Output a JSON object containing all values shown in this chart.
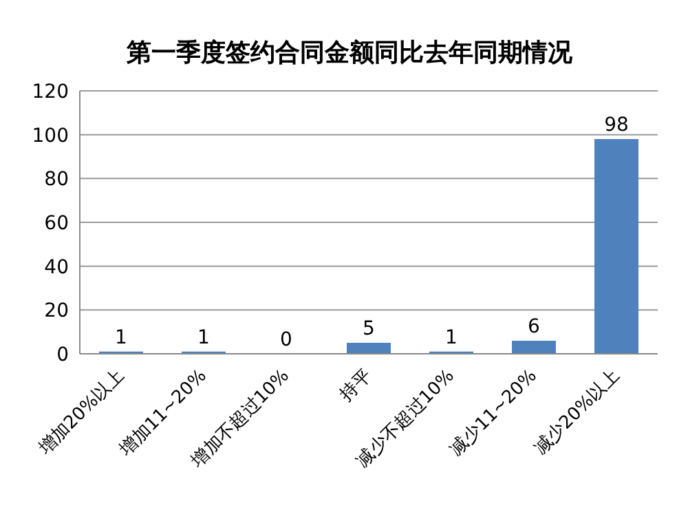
{
  "chart_data": {
    "type": "bar",
    "title": "第一季度签约合同金额同比去年同期情况",
    "categories": [
      "增加20%以上",
      "增加11~20%",
      "增加不超过10%",
      "持平",
      "减少不超过10%",
      "减少11~20%",
      "减少20%以上"
    ],
    "values": [
      1,
      1,
      0,
      5,
      1,
      6,
      98
    ],
    "color": "#4f81bd",
    "ylim": [
      0,
      120
    ],
    "yticks": [
      0,
      20,
      40,
      60,
      80,
      100,
      120
    ],
    "grid": "y",
    "data_labels": true
  }
}
